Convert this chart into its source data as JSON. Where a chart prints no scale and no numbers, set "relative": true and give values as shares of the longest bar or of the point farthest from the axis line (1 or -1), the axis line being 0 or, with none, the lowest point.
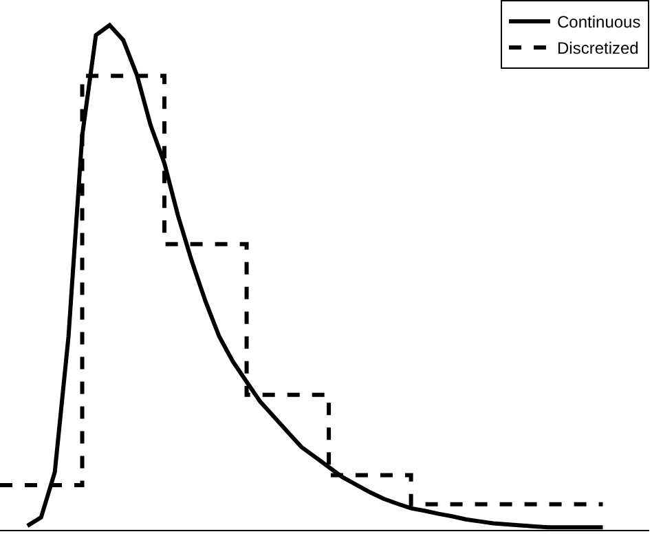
{
  "chart_data": {
    "type": "line",
    "relative": true,
    "legend": "top right",
    "categories": [
      null,
      null,
      null,
      null,
      null,
      null,
      null,
      null,
      null,
      null,
      null,
      null,
      null,
      null,
      null,
      null,
      null,
      null,
      null,
      null,
      null,
      null,
      null,
      null,
      null,
      null,
      null,
      null,
      null,
      null,
      null,
      null,
      null,
      null,
      null,
      null,
      null,
      null,
      null,
      null,
      null,
      null,
      null,
      null,
      null
    ],
    "series": [
      {
        "name": "Continuous",
        "color": "#000000",
        "line_style": "solid",
        "values": [
          null,
          null,
          0.003,
          0.02,
          0.11,
          0.38,
          0.78,
          0.98,
          1,
          0.97,
          0.9,
          0.8,
          0.725,
          0.62,
          0.53,
          0.45,
          0.38,
          0.33,
          0.29,
          0.25,
          0.22,
          0.19,
          0.16,
          0.14,
          0.12,
          0.1,
          0.085,
          0.07,
          0.057,
          0.047,
          0.038,
          0.033,
          0.027,
          0.022,
          0.016,
          0.012,
          0.008,
          0.006,
          0.004,
          0.002,
          0,
          0,
          0,
          0,
          0
        ]
      },
      {
        "name": "Discretized",
        "color": "#000000",
        "type": "step",
        "line_style": "dashed",
        "values": [
          0.084,
          0.084,
          0.084,
          0.084,
          0.084,
          0.084,
          0.899,
          0.899,
          0.899,
          0.899,
          0.899,
          0.899,
          0.564,
          0.564,
          0.564,
          0.564,
          0.564,
          0.564,
          0.264,
          0.264,
          0.264,
          0.264,
          0.264,
          0.264,
          0.104,
          0.104,
          0.104,
          0.104,
          0.104,
          0.104,
          0.046,
          0.046,
          0.046,
          0.046,
          0.046,
          0.046,
          0.046,
          0.046,
          0.046,
          0.046,
          0.046,
          0.046,
          0.046,
          0.046,
          0.046
        ]
      }
    ]
  }
}
